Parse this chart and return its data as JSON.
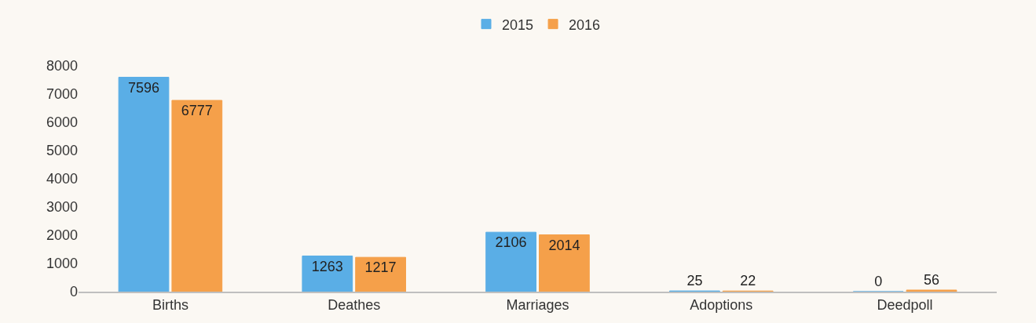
{
  "chart_data": {
    "type": "bar",
    "categories": [
      "Births",
      "Deathes",
      "Marriages",
      "Adoptions",
      "Deedpoll"
    ],
    "series": [
      {
        "name": "2015",
        "color": "#5aaee6",
        "values": [
          7596,
          1263,
          2106,
          25,
          0
        ]
      },
      {
        "name": "2016",
        "color": "#f5a04a",
        "values": [
          6777,
          1217,
          2014,
          22,
          56
        ]
      }
    ],
    "ylim": [
      0,
      8000
    ],
    "yticks": [
      0,
      1000,
      2000,
      3000,
      4000,
      5000,
      6000,
      7000,
      8000
    ],
    "grid": false,
    "legend": "top",
    "data_labels": true
  }
}
